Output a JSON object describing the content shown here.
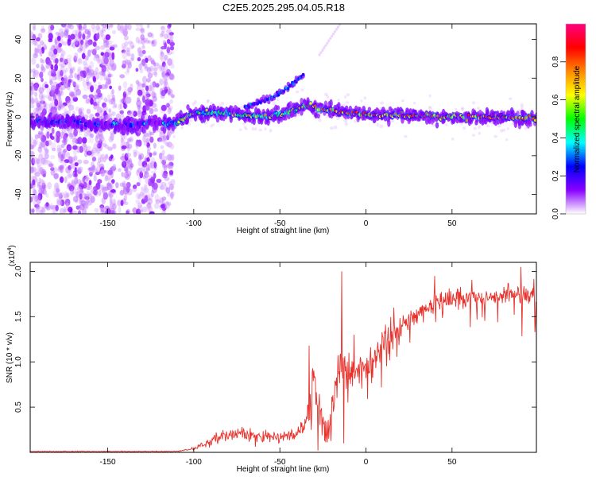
{
  "figure": {
    "title": "C2E5.2025.295.04.05.R18"
  },
  "chart_data": [
    {
      "type": "heatmap",
      "name": "spectrogram",
      "xlabel": "Height of straight line (km)",
      "ylabel": "Frequency (Hz)",
      "xlim": [
        -195,
        99
      ],
      "ylim": [
        -50,
        48
      ],
      "xticks": [
        -150,
        -100,
        -50,
        0,
        50
      ],
      "yticks": [
        -40,
        -20,
        0,
        20,
        40
      ],
      "colorbar": {
        "label": "Normalized spectral amplitude",
        "range": [
          0,
          1
        ],
        "ticks": [
          "0.0",
          "0.2",
          "0.4",
          "0.6",
          "0.8"
        ],
        "tick_values": [
          0,
          0.2,
          0.4,
          0.6,
          0.8
        ],
        "colors": [
          "#ffffff",
          "#8800ff",
          "#0000ff",
          "#00ffff",
          "#00ff00",
          "#ffff00",
          "#ff8800",
          "#ff0000",
          "#ff0080"
        ]
      },
      "features": {
        "noise_region_x": [
          -195,
          -112
        ],
        "main_band": [
          [
            -195,
            -2
          ],
          [
            -150,
            -4
          ],
          [
            -130,
            -4
          ],
          [
            -110,
            -3
          ],
          [
            -100,
            2
          ],
          [
            -80,
            2
          ],
          [
            -60,
            0
          ],
          [
            -50,
            1
          ],
          [
            -35,
            6
          ],
          [
            -25,
            4
          ],
          [
            -10,
            2
          ],
          [
            0,
            1
          ],
          [
            20,
            1
          ],
          [
            50,
            0
          ],
          [
            80,
            0
          ],
          [
            99,
            -1
          ]
        ],
        "branch": [
          [
            -70,
            5
          ],
          [
            -55,
            10
          ],
          [
            -45,
            15
          ],
          [
            -36,
            22
          ]
        ]
      }
    },
    {
      "type": "line",
      "name": "snr",
      "xlabel": "Height of straight line (km)",
      "ylabel": "SNR (10 * v/v)",
      "multiplier_label": "(x10",
      "multiplier_exp": "4",
      "multiplier_close": ")",
      "xlim": [
        -195,
        99
      ],
      "ylim": [
        0,
        2.1
      ],
      "xticks": [
        -150,
        -100,
        -50,
        0,
        50
      ],
      "yticks": [
        0.5,
        1.0,
        1.5,
        2.0
      ],
      "ytick_labels": [
        "0.5",
        "1.0",
        "1.5",
        "2.0"
      ],
      "series": [
        {
          "name": "SNR",
          "color": "#e8302a",
          "envelope": [
            [
              -195,
              0.01
            ],
            [
              -110,
              0.01
            ],
            [
              -100,
              0.04
            ],
            [
              -90,
              0.12
            ],
            [
              -80,
              0.22
            ],
            [
              -70,
              0.2
            ],
            [
              -60,
              0.18
            ],
            [
              -50,
              0.16
            ],
            [
              -40,
              0.2
            ],
            [
              -33,
              0.35
            ],
            [
              -30,
              0.9
            ],
            [
              -28,
              0.5
            ],
            [
              -22,
              0.2
            ],
            [
              -18,
              0.7
            ],
            [
              -14,
              1.0
            ],
            [
              -10,
              0.85
            ],
            [
              -5,
              0.95
            ],
            [
              0,
              0.95
            ],
            [
              5,
              1.1
            ],
            [
              10,
              1.2
            ],
            [
              20,
              1.4
            ],
            [
              30,
              1.55
            ],
            [
              40,
              1.65
            ],
            [
              55,
              1.72
            ],
            [
              70,
              1.72
            ],
            [
              85,
              1.75
            ],
            [
              99,
              1.72
            ]
          ],
          "spikes": [
            [
              -33,
              1.18
            ],
            [
              -14,
              2.0
            ],
            [
              -28,
              0.02
            ],
            [
              -13,
              0.1
            ],
            [
              -7,
              1.3
            ],
            [
              40,
              1.95
            ],
            [
              90,
              2.05
            ]
          ]
        }
      ]
    }
  ]
}
